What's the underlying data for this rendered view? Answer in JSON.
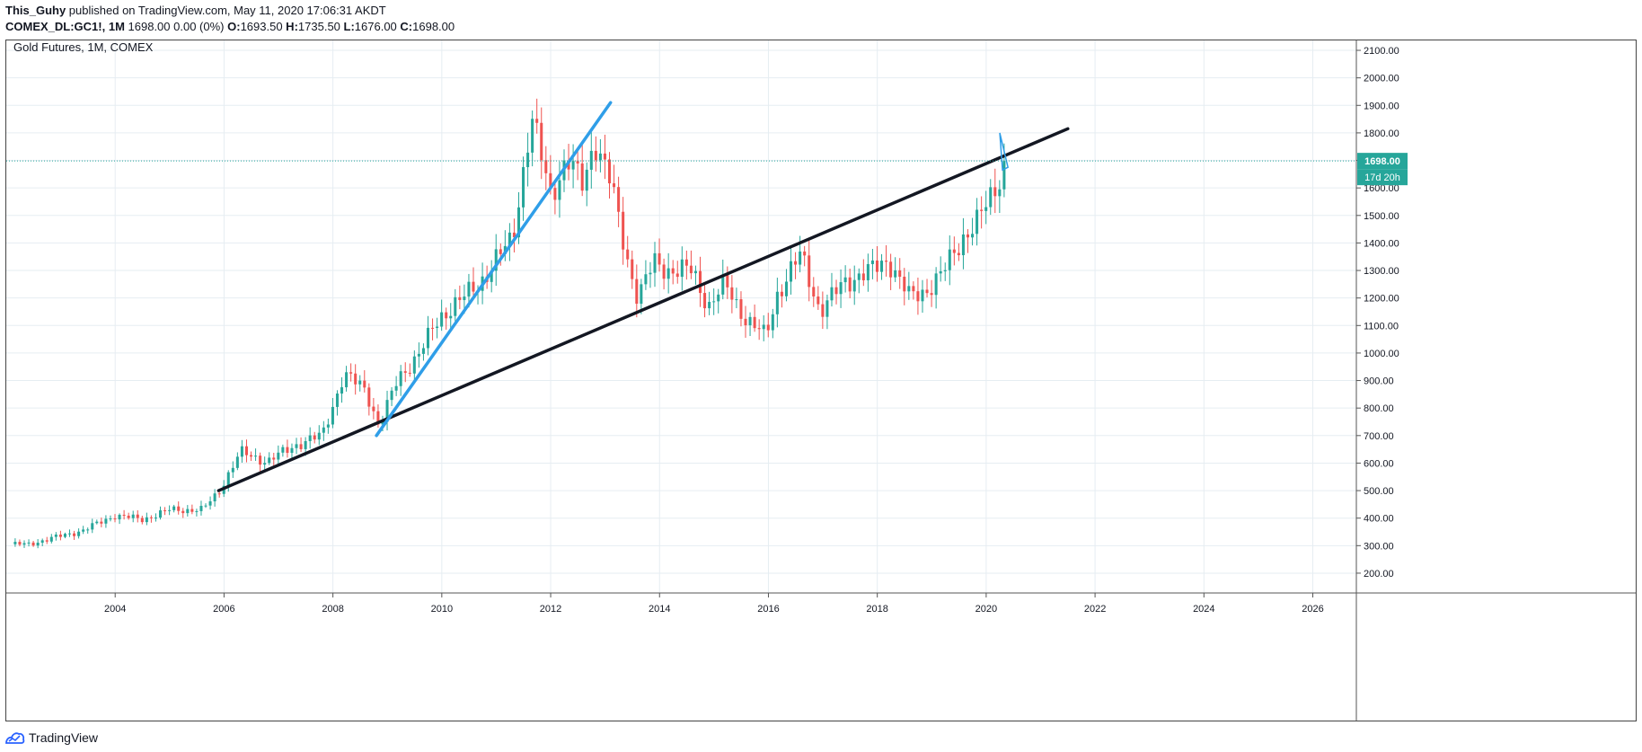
{
  "header": {
    "author": "This_Guhy",
    "published_text": " published on TradingView.com, May 11, 2020 17:06:31 AKDT",
    "symbol": "COMEX_DL:GC1!, 1M",
    "quote_text": " 1698.00 0.00 (0%) ",
    "o_label": "O:",
    "o_value": "1693.50",
    "h_label": " H:",
    "h_value": "1735.50",
    "l_label": " L:",
    "l_value": "1676.00",
    "c_label": " C:",
    "c_value": "1698.00"
  },
  "legend_title": "Gold Futures, 1M, COMEX",
  "price_badge": "1698.00",
  "countdown_badge": "17d 20h",
  "footer_brand": "TradingView",
  "colors": {
    "up": "#26a69a",
    "down": "#ef5350",
    "trendline_black": "#131722",
    "trendline_blue": "#2f9ee8",
    "price_line": "#26a69a",
    "grid": "#e6edf2"
  },
  "chart_data": {
    "type": "candlestick",
    "title": "Gold Futures, 1M, COMEX",
    "x_range": [
      2002.0,
      2026.8
    ],
    "y_range": [
      128,
      2136
    ],
    "x_ticks": [
      "2004",
      "2006",
      "2008",
      "2010",
      "2012",
      "2014",
      "2016",
      "2018",
      "2020",
      "2022",
      "2024",
      "2026"
    ],
    "y_ticks": [
      "200.00",
      "300.00",
      "400.00",
      "500.00",
      "600.00",
      "700.00",
      "800.00",
      "900.00",
      "1000.00",
      "1100.00",
      "1200.00",
      "1300.00",
      "1400.00",
      "1500.00",
      "1600.00",
      "1700.00",
      "1800.00",
      "1900.00",
      "2000.00",
      "2100.00"
    ],
    "last_price": 1698.0,
    "close_anchors": [
      [
        2002.4,
        305
      ],
      [
        2003.0,
        335
      ],
      [
        2003.4,
        355
      ],
      [
        2004.0,
        410
      ],
      [
        2004.5,
        395
      ],
      [
        2005.0,
        430
      ],
      [
        2005.6,
        430
      ],
      [
        2005.9,
        495
      ],
      [
        2006.3,
        640
      ],
      [
        2006.8,
        605
      ],
      [
        2007.3,
        665
      ],
      [
        2007.8,
        700
      ],
      [
        2008.2,
        920
      ],
      [
        2008.6,
        870
      ],
      [
        2008.85,
        730
      ],
      [
        2009.2,
        910
      ],
      [
        2009.6,
        1000
      ],
      [
        2009.95,
        1130
      ],
      [
        2010.4,
        1200
      ],
      [
        2010.8,
        1280
      ],
      [
        2011.3,
        1420
      ],
      [
        2011.65,
        1850
      ],
      [
        2012.0,
        1580
      ],
      [
        2012.3,
        1700
      ],
      [
        2012.6,
        1610
      ],
      [
        2012.8,
        1780
      ],
      [
        2013.1,
        1620
      ],
      [
        2013.4,
        1350
      ],
      [
        2013.6,
        1200
      ],
      [
        2013.9,
        1330
      ],
      [
        2014.2,
        1300
      ],
      [
        2014.6,
        1300
      ],
      [
        2014.9,
        1170
      ],
      [
        2015.2,
        1250
      ],
      [
        2015.6,
        1120
      ],
      [
        2015.95,
        1060
      ],
      [
        2016.15,
        1210
      ],
      [
        2016.6,
        1360
      ],
      [
        2016.95,
        1150
      ],
      [
        2017.4,
        1260
      ],
      [
        2017.9,
        1300
      ],
      [
        2018.2,
        1340
      ],
      [
        2018.6,
        1200
      ],
      [
        2018.9,
        1230
      ],
      [
        2019.2,
        1290
      ],
      [
        2019.6,
        1430
      ],
      [
        2019.85,
        1480
      ],
      [
        2020.15,
        1590
      ],
      [
        2020.36,
        1698
      ]
    ],
    "trendlines": [
      {
        "name": "",
        "color": "black",
        "points": [
          [
            2005.9,
            500
          ],
          [
            2021.5,
            1815
          ]
        ]
      },
      {
        "name": "",
        "color": "blue",
        "points": [
          [
            2008.8,
            700
          ],
          [
            2013.1,
            1910
          ]
        ]
      }
    ],
    "annotation_triangle": [
      [
        2020.25,
        1800
      ],
      [
        2020.4,
        1675
      ],
      [
        2020.3,
        1665
      ]
    ]
  }
}
